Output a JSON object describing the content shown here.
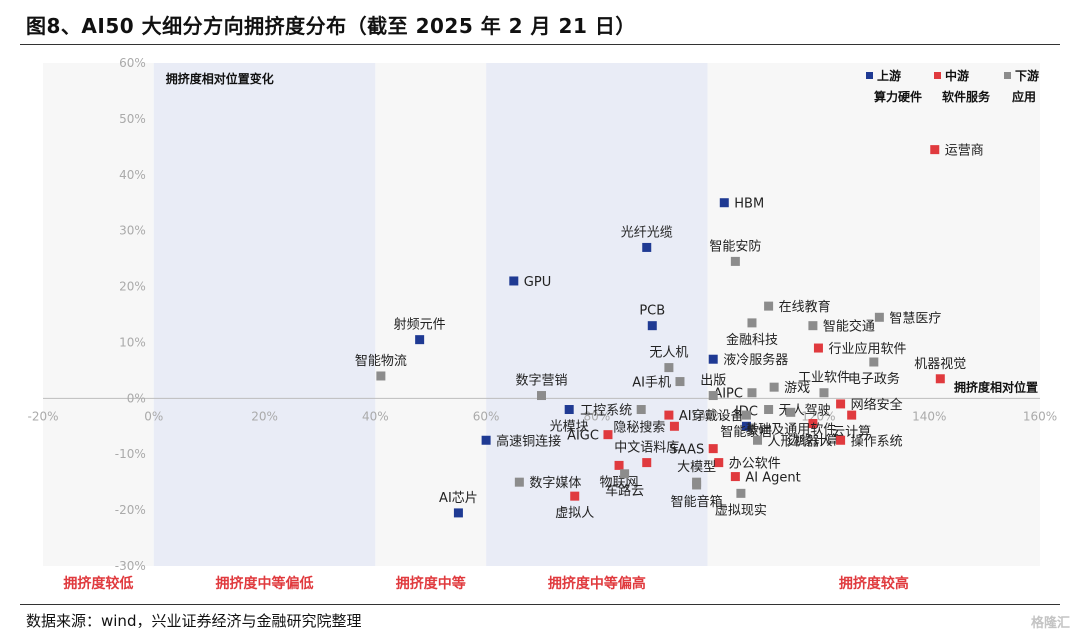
{
  "title": "图8、AI50 大细分方向拥挤度分布（截至 2025 年 2 月 21 日）",
  "source": "数据来源：wind，兴业证券经济与金融研究院整理",
  "watermark": "格隆汇",
  "chart_data": {
    "type": "scatter",
    "xlim": [
      -20,
      160
    ],
    "ylim": [
      -30,
      60
    ],
    "x_ticks": [
      "-20%",
      "0%",
      "20%",
      "40%",
      "60%",
      "80%",
      "100%",
      "120%",
      "140%",
      "160%"
    ],
    "y_ticks": [
      "-30%",
      "-20%",
      "-10%",
      "0%",
      "10%",
      "20%",
      "30%",
      "40%",
      "50%",
      "60%"
    ],
    "y_axis_label": "拥挤度相对位置变化",
    "x_axis_label": "拥挤度相对位置",
    "bands": [
      {
        "label": "拥挤度较低",
        "from": -20,
        "to": 0,
        "shaded": false
      },
      {
        "label": "拥挤度中等偏低",
        "from": 0,
        "to": 40,
        "shaded": true
      },
      {
        "label": "拥挤度中等",
        "from": 40,
        "to": 60,
        "shaded": false
      },
      {
        "label": "拥挤度中等偏高",
        "from": 60,
        "to": 100,
        "shaded": true
      },
      {
        "label": "拥挤度较高",
        "from": 100,
        "to": 160,
        "shaded": false
      }
    ],
    "legend": [
      {
        "name": "上游",
        "sub": "算力硬件",
        "color": "#1f3a93"
      },
      {
        "name": "中游",
        "sub": "软件服务",
        "color": "#e03a3e"
      },
      {
        "name": "下游",
        "sub": "应用",
        "color": "#8c8c8c"
      }
    ],
    "series": [
      {
        "name": "上游",
        "color": "#1f3a93",
        "points": [
          {
            "label": "HBM",
            "x": 103,
            "y": 35,
            "pos": "right"
          },
          {
            "label": "光纤光缆",
            "x": 89,
            "y": 27,
            "pos": "above"
          },
          {
            "label": "GPU",
            "x": 65,
            "y": 21,
            "pos": "right"
          },
          {
            "label": "PCB",
            "x": 90,
            "y": 13,
            "pos": "above"
          },
          {
            "label": "射频元件",
            "x": 48,
            "y": 10.5,
            "pos": "above"
          },
          {
            "label": "液冷服务器",
            "x": 101,
            "y": 7,
            "pos": "right"
          },
          {
            "label": "光模块",
            "x": 75,
            "y": -2,
            "pos": "below"
          },
          {
            "label": "高速铜连接",
            "x": 60,
            "y": -7.5,
            "pos": "right"
          },
          {
            "label": "AI芯片",
            "x": 55,
            "y": -20.5,
            "pos": "above"
          },
          {
            "label": "IDC",
            "x": 107,
            "y": -5,
            "pos": "above"
          }
        ]
      },
      {
        "name": "中游",
        "color": "#e03a3e",
        "points": [
          {
            "label": "运营商",
            "x": 141,
            "y": 44.5,
            "pos": "right"
          },
          {
            "label": "行业应用软件",
            "x": 120,
            "y": 9,
            "pos": "right"
          },
          {
            "label": "机器视觉",
            "x": 142,
            "y": 3.5,
            "pos": "above"
          },
          {
            "label": "网络安全",
            "x": 124,
            "y": -1,
            "pos": "right"
          },
          {
            "label": "云计算",
            "x": 126,
            "y": -3,
            "pos": "below"
          },
          {
            "label": "边缘计算",
            "x": 119,
            "y": -4.5,
            "pos": "below"
          },
          {
            "label": "操作系统",
            "x": 124,
            "y": -7.5,
            "pos": "right"
          },
          {
            "label": "AI穿戴设备",
            "x": 93,
            "y": -3,
            "pos": "right"
          },
          {
            "label": "隐秘搜索",
            "x": 94,
            "y": -5,
            "pos": "left"
          },
          {
            "label": "AIGC",
            "x": 82,
            "y": -6.5,
            "pos": "left"
          },
          {
            "label": "中文语料库",
            "x": 89,
            "y": -11.5,
            "pos": "above"
          },
          {
            "label": "物联网",
            "x": 84,
            "y": -12,
            "pos": "below"
          },
          {
            "label": "SAAS",
            "x": 101,
            "y": -9,
            "pos": "left"
          },
          {
            "label": "办公软件",
            "x": 102,
            "y": -11.5,
            "pos": "right"
          },
          {
            "label": "AI Agent",
            "x": 105,
            "y": -14,
            "pos": "right"
          },
          {
            "label": "虚拟人",
            "x": 76,
            "y": -17.5,
            "pos": "below"
          }
        ]
      },
      {
        "name": "下游",
        "color": "#8c8c8c",
        "points": [
          {
            "label": "智能安防",
            "x": 105,
            "y": 24.5,
            "pos": "above"
          },
          {
            "label": "在线教育",
            "x": 111,
            "y": 16.5,
            "pos": "right"
          },
          {
            "label": "智慧医疗",
            "x": 131,
            "y": 14.5,
            "pos": "right"
          },
          {
            "label": "金融科技",
            "x": 108,
            "y": 13.5,
            "pos": "below"
          },
          {
            "label": "智能交通",
            "x": 119,
            "y": 13,
            "pos": "right"
          },
          {
            "label": "电子政务",
            "x": 130,
            "y": 6.5,
            "pos": "below"
          },
          {
            "label": "无人机",
            "x": 93,
            "y": 5.5,
            "pos": "above"
          },
          {
            "label": "AI手机",
            "x": 95,
            "y": 3,
            "pos": "left"
          },
          {
            "label": "游戏",
            "x": 112,
            "y": 2,
            "pos": "right"
          },
          {
            "label": "工业软件",
            "x": 121,
            "y": 1,
            "pos": "above"
          },
          {
            "label": "AIPC",
            "x": 108,
            "y": 1,
            "pos": "left"
          },
          {
            "label": "智能家居",
            "x": 107,
            "y": -3,
            "pos": "below"
          },
          {
            "label": "数字营销",
            "x": 70,
            "y": 0.5,
            "pos": "above"
          },
          {
            "label": "智能物流",
            "x": 41,
            "y": 4,
            "pos": "above"
          },
          {
            "label": "出版",
            "x": 101,
            "y": 0.5,
            "pos": "above"
          },
          {
            "label": "工控系统",
            "x": 88,
            "y": -2,
            "pos": "left"
          },
          {
            "label": "无人驾驶",
            "x": 111,
            "y": -2,
            "pos": "right"
          },
          {
            "label": "基础及通用软件",
            "x": 115,
            "y": -2.5,
            "pos": "below"
          },
          {
            "label": "人形机器人",
            "x": 109,
            "y": -7.5,
            "pos": "right"
          },
          {
            "label": "大模型",
            "x": 98,
            "y": -15,
            "pos": "above"
          },
          {
            "label": "车路云",
            "x": 85,
            "y": -13.5,
            "pos": "below"
          },
          {
            "label": "智能音箱",
            "x": 98,
            "y": -15.5,
            "pos": "below"
          },
          {
            "label": "虚拟现实",
            "x": 106,
            "y": -17,
            "pos": "below"
          },
          {
            "label": "数字媒体",
            "x": 66,
            "y": -15,
            "pos": "right"
          }
        ]
      }
    ]
  }
}
